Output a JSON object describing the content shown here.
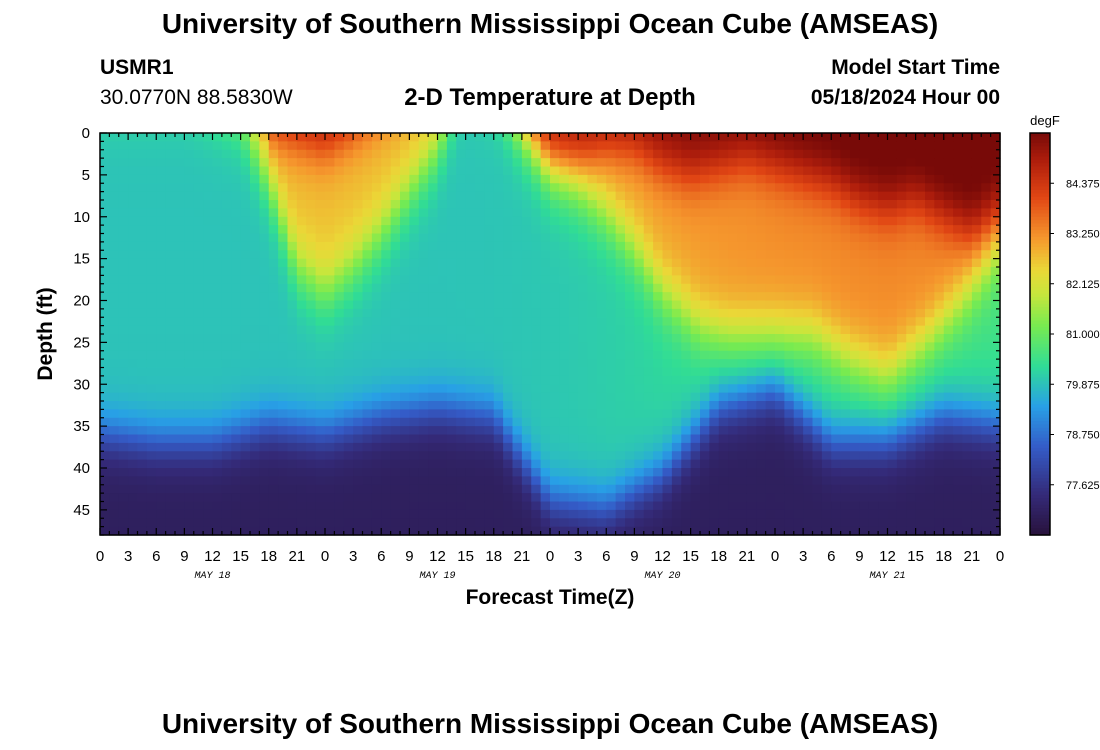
{
  "header": {
    "title": "University of Southern Mississippi Ocean Cube (AMSEAS)",
    "station_id": "USMR1",
    "coords": "30.0770N  88.5830W",
    "subtitle": "2-D Temperature at Depth",
    "model_start_label": "Model Start Time",
    "model_start_date": "05/18/2024 Hour 00"
  },
  "footer": {
    "title": "University of Southern Mississippi Ocean Cube (AMSEAS)"
  },
  "chart_data": {
    "type": "heatmap",
    "title": "2-D Temperature at Depth",
    "xlabel": "Forecast Time(Z)",
    "ylabel": "Depth (ft)",
    "x_hours_range": [
      0,
      96
    ],
    "y_range": [
      0,
      48
    ],
    "x_ticks": [
      "0",
      "3",
      "6",
      "9",
      "12",
      "15",
      "18",
      "21",
      "0",
      "3",
      "6",
      "9",
      "12",
      "15",
      "18",
      "21",
      "0",
      "3",
      "6",
      "9",
      "12",
      "15",
      "18",
      "21",
      "0",
      "3",
      "6",
      "9",
      "12",
      "15",
      "18",
      "21",
      "0"
    ],
    "y_ticks": [
      "0",
      "5",
      "10",
      "15",
      "20",
      "25",
      "30",
      "35",
      "40",
      "45"
    ],
    "date_labels": [
      "MAY 18",
      "MAY 19",
      "MAY 20",
      "MAY 21"
    ],
    "colorbar": {
      "unit": "degF",
      "range": [
        76.5,
        85.5
      ],
      "ticks": [
        "84.375",
        "83.250",
        "82.125",
        "81.000",
        "79.875",
        "78.750",
        "77.625"
      ]
    },
    "thermocline_depth_ft_by_hour": [
      [
        0,
        36
      ],
      [
        6,
        37
      ],
      [
        12,
        37
      ],
      [
        18,
        35
      ],
      [
        24,
        36
      ],
      [
        30,
        34
      ],
      [
        36,
        33
      ],
      [
        42,
        34
      ],
      [
        48,
        44
      ],
      [
        54,
        45
      ],
      [
        60,
        41
      ],
      [
        66,
        33
      ],
      [
        72,
        31
      ],
      [
        78,
        37
      ],
      [
        84,
        37
      ],
      [
        90,
        34
      ],
      [
        96,
        35
      ]
    ],
    "surface_warm_layer_base_ft_by_hour": [
      [
        0,
        -6
      ],
      [
        9,
        -6
      ],
      [
        15,
        -2
      ],
      [
        18,
        6
      ],
      [
        21,
        16
      ],
      [
        24,
        19
      ],
      [
        27,
        16
      ],
      [
        30,
        12
      ],
      [
        33,
        7
      ],
      [
        36,
        2
      ],
      [
        39,
        -8
      ],
      [
        42,
        -6
      ],
      [
        45,
        0
      ],
      [
        48,
        5
      ],
      [
        51,
        7
      ],
      [
        54,
        10
      ],
      [
        57,
        14
      ],
      [
        60,
        19
      ],
      [
        64,
        23
      ],
      [
        67,
        24
      ],
      [
        72,
        24
      ],
      [
        76,
        24
      ],
      [
        80,
        27
      ],
      [
        84,
        29
      ],
      [
        88,
        25
      ],
      [
        92,
        20
      ],
      [
        96,
        14
      ]
    ],
    "core_heat_depth_ft_by_hour": [
      [
        0,
        -10
      ],
      [
        16,
        -10
      ],
      [
        18,
        0
      ],
      [
        24,
        2
      ],
      [
        27,
        0
      ],
      [
        39,
        -10
      ],
      [
        42,
        -4
      ],
      [
        45,
        1
      ],
      [
        48,
        5
      ],
      [
        51,
        4
      ],
      [
        54,
        2
      ],
      [
        57,
        2
      ],
      [
        60,
        4
      ],
      [
        63,
        5
      ],
      [
        66,
        4
      ],
      [
        69,
        3
      ],
      [
        72,
        4
      ],
      [
        75,
        5
      ],
      [
        78,
        6
      ],
      [
        81,
        8
      ],
      [
        84,
        9
      ],
      [
        87,
        8
      ],
      [
        90,
        10
      ],
      [
        93,
        12
      ],
      [
        96,
        10
      ]
    ]
  }
}
